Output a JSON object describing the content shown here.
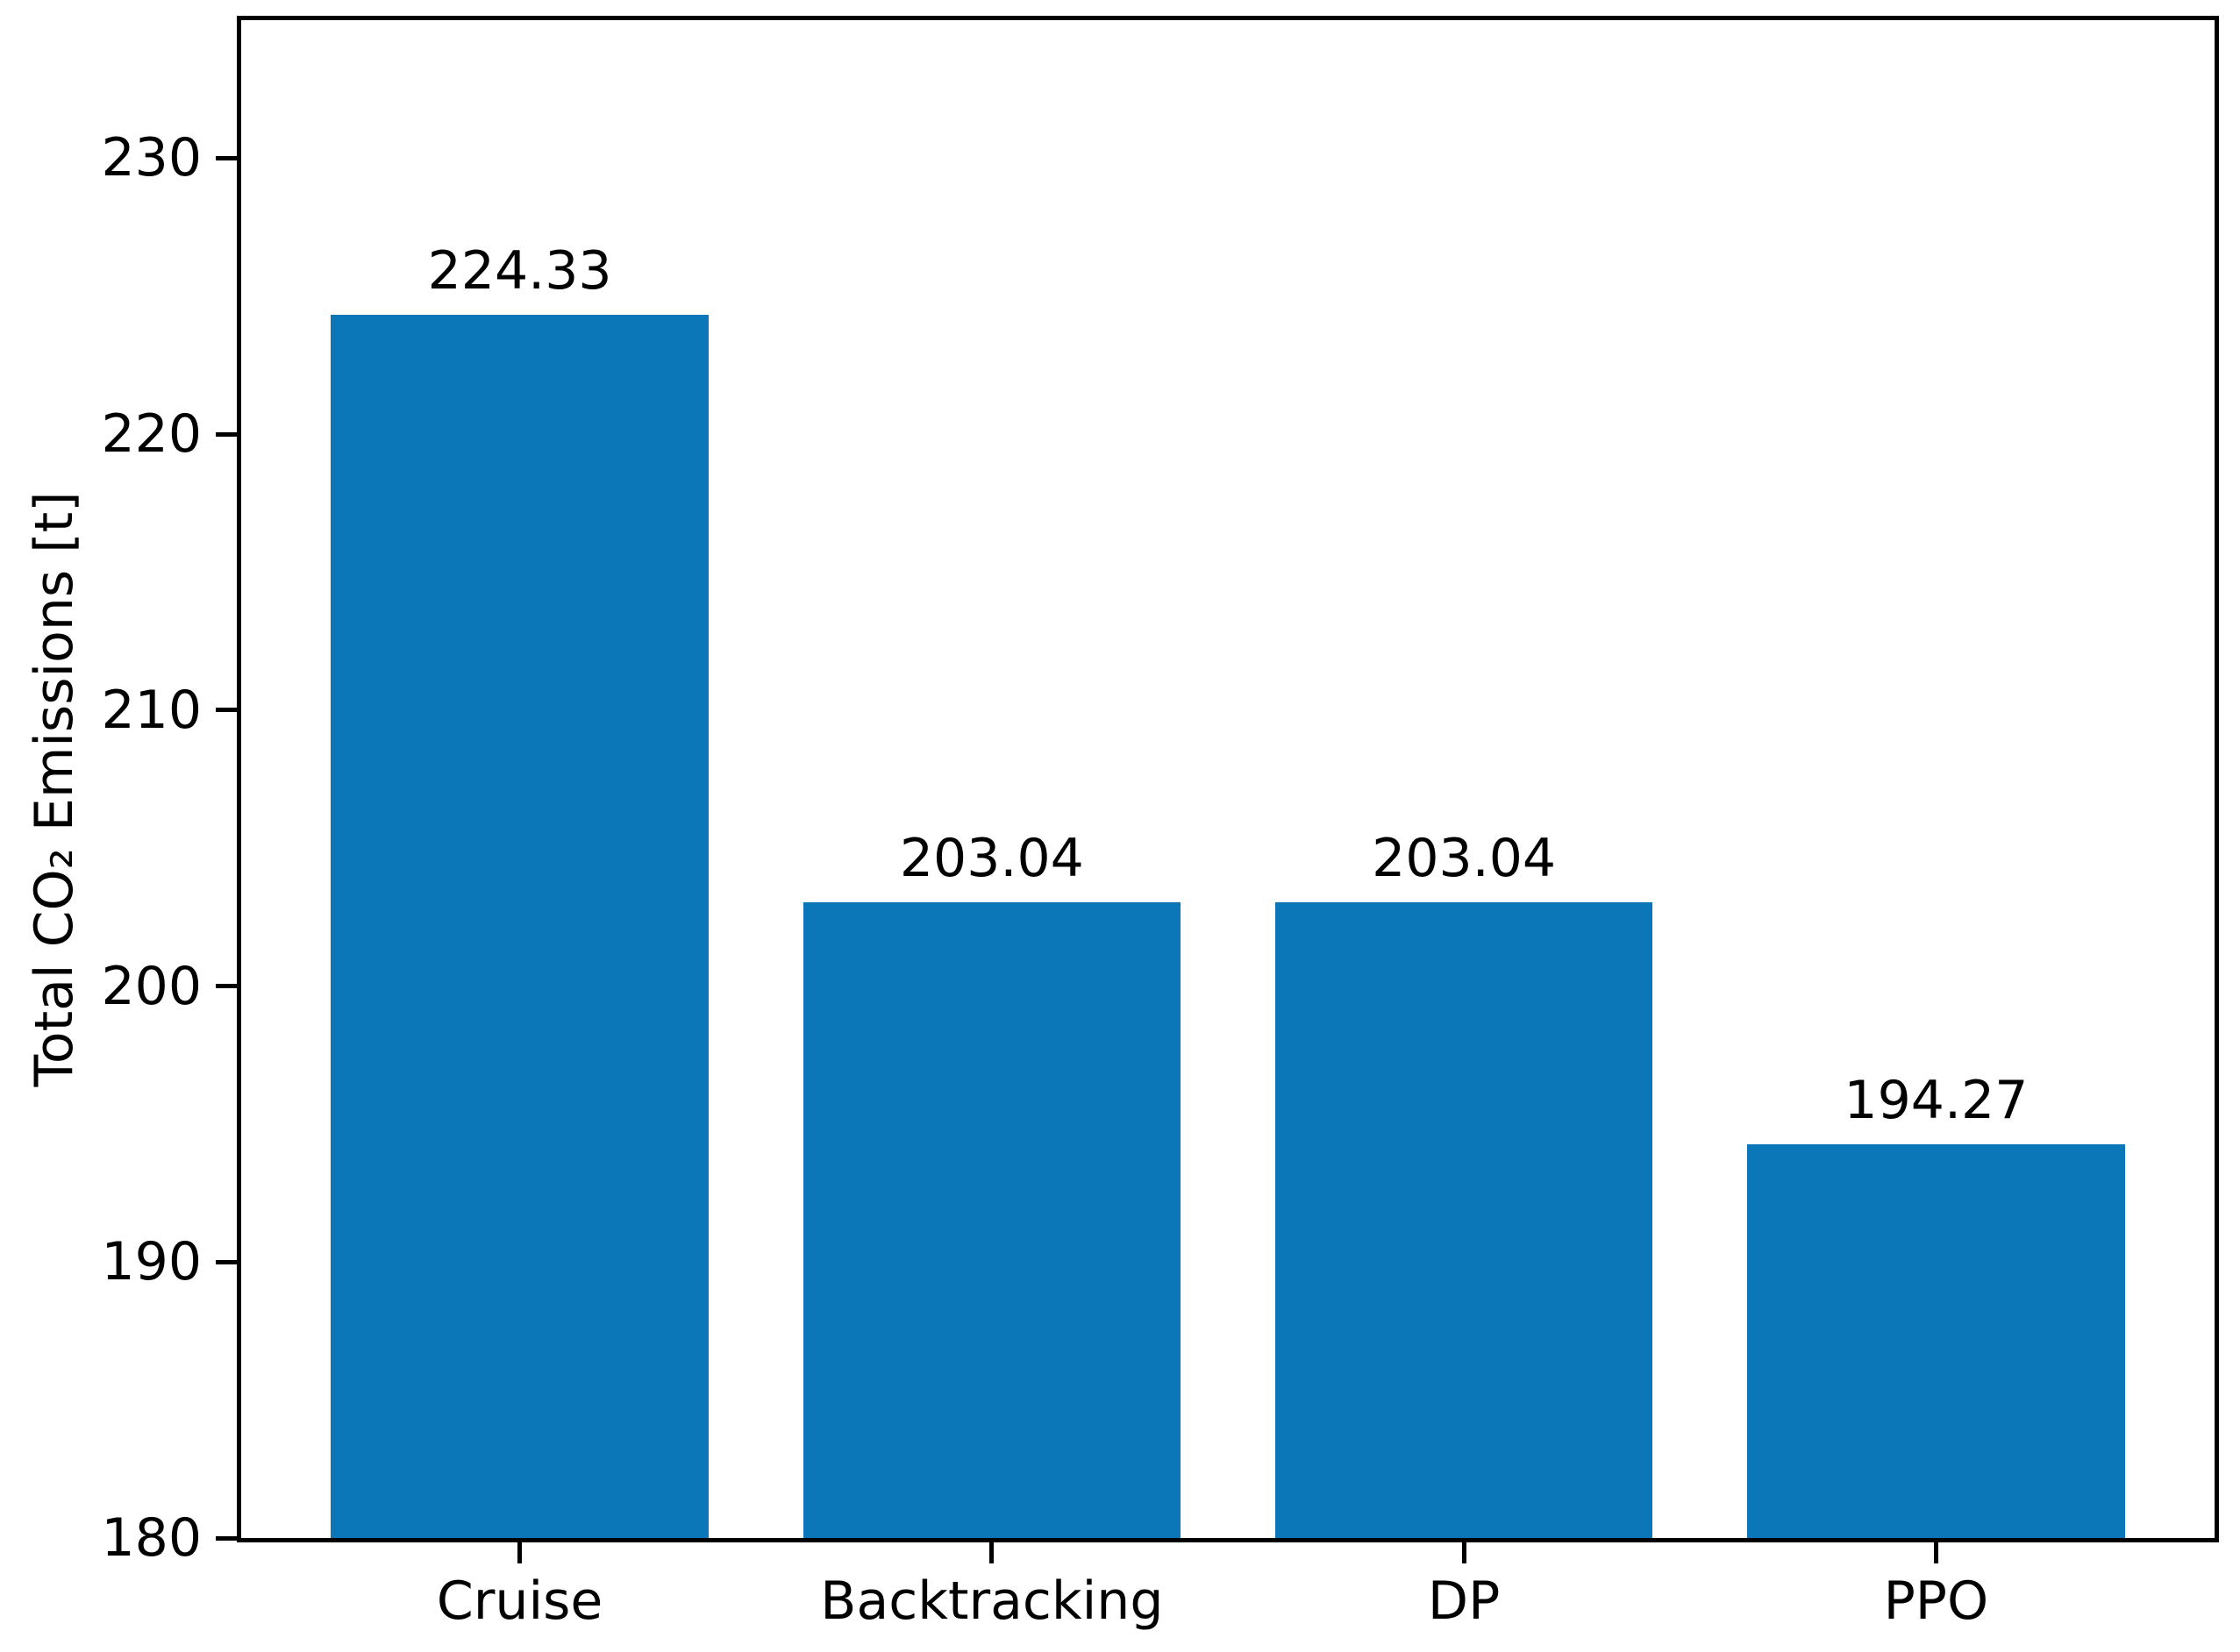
{
  "chart_data": {
    "type": "bar",
    "categories": [
      "Cruise",
      "Backtracking",
      "DP",
      "PPO"
    ],
    "values": [
      224.33,
      203.04,
      203.04,
      194.27
    ],
    "value_labels": [
      "224.33",
      "203.04",
      "203.04",
      "194.27"
    ],
    "title": "",
    "xlabel": "",
    "ylabel": "Total CO₂ Emissions [t]",
    "yticks": [
      180,
      190,
      200,
      210,
      220,
      230
    ],
    "ylim": [
      180,
      235
    ],
    "xlim": [
      -0.59,
      3.59
    ],
    "bar_width_units": 0.8,
    "grid": false,
    "legend_position": "none",
    "colors": {
      "bar": "#0b76b8",
      "axis": "#000000",
      "text": "#000000",
      "background": "#ffffff"
    }
  }
}
